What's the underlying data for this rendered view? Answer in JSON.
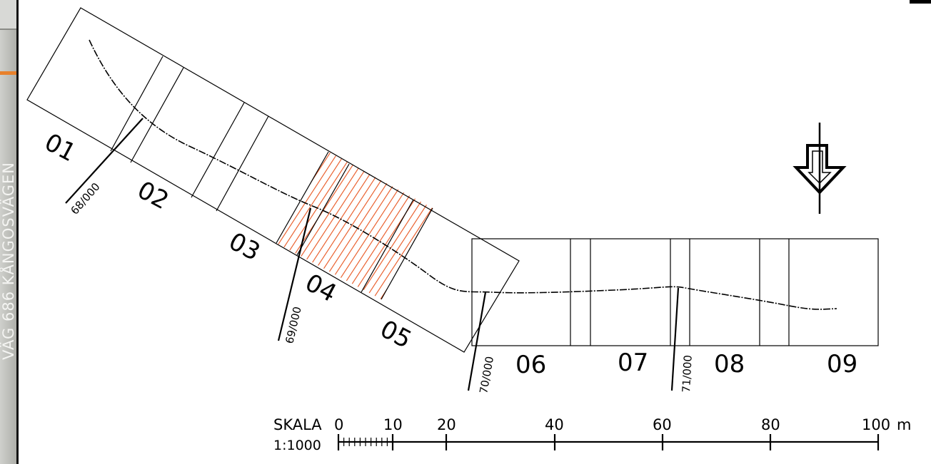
{
  "sidebar": {
    "road_name": "VÄG 686 KÅNGOSVÄGEN"
  },
  "sections": [
    "01",
    "02",
    "03",
    "04",
    "05",
    "06",
    "07",
    "08",
    "09"
  ],
  "chainages": [
    "68/000",
    "69/000",
    "70/000",
    "71/000"
  ],
  "scale": {
    "label": "SKALA",
    "ratio": "1:1000",
    "unit": "m",
    "ticks": [
      "0",
      "10",
      "20",
      "40",
      "60",
      "80",
      "100"
    ]
  },
  "colors": {
    "hatch": "#e8541e",
    "line": "#000000",
    "sidebar_accent": "#e8812c"
  },
  "icons": {
    "north_arrow": "north-arrow-icon"
  }
}
